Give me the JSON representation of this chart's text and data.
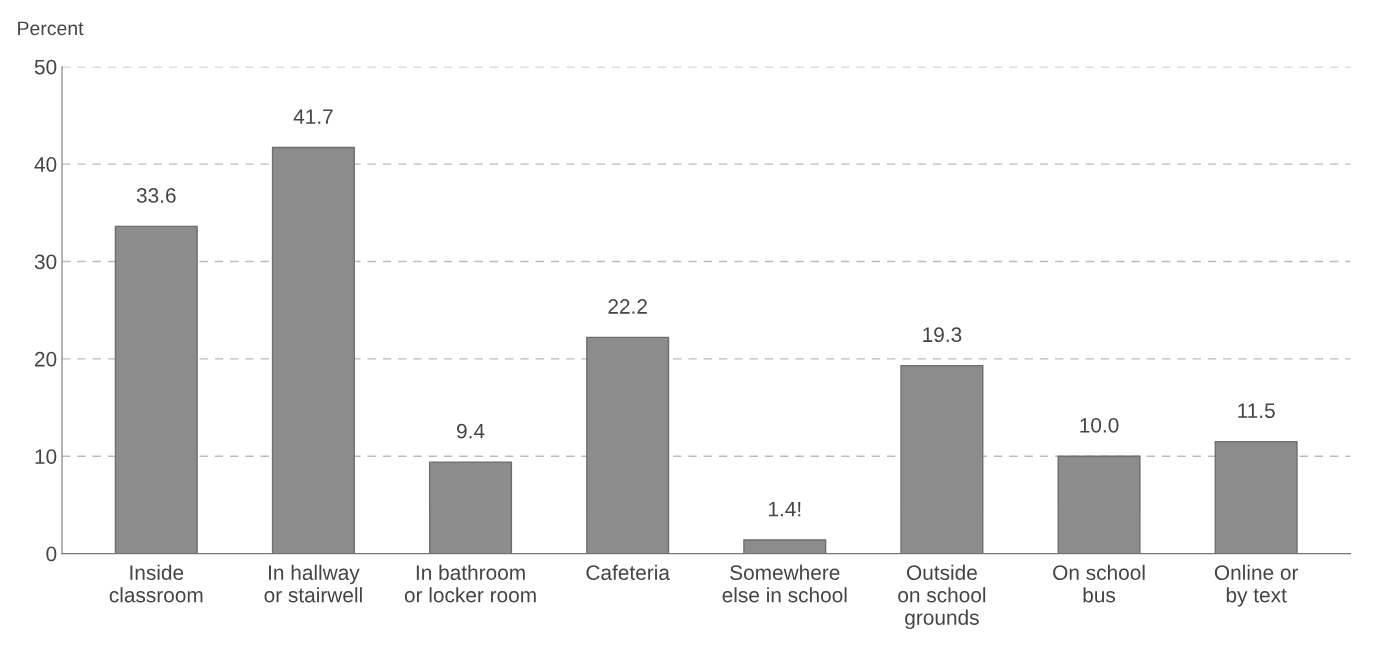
{
  "chart_data": {
    "type": "bar",
    "ylabel": "Percent",
    "categories": [
      "Inside\nclassroom",
      "In hallway\nor stairwell",
      "In bathroom\nor locker room",
      "Cafeteria",
      "Somewhere\nelse in school",
      "Outside\non school\ngrounds",
      "On school\nbus",
      "Online or\nby text"
    ],
    "values": [
      33.6,
      41.7,
      9.4,
      22.2,
      1.4,
      19.3,
      10.0,
      11.5
    ],
    "value_labels": [
      "33.6",
      "41.7",
      "9.4",
      "22.2",
      "1.4!",
      "19.3",
      "10.0",
      "11.5"
    ],
    "color": "#8c8c8c",
    "ylim": [
      0,
      50
    ],
    "yticks": [
      0,
      10,
      20,
      30,
      40,
      50
    ],
    "grid": "y"
  }
}
